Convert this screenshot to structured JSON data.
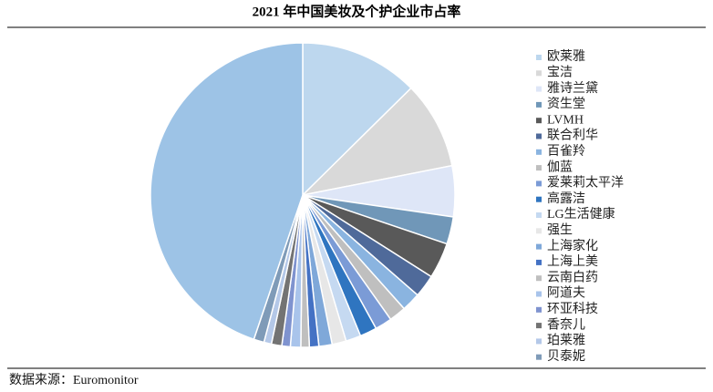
{
  "chart_data": {
    "type": "pie",
    "title": "2021 年中国美妆及个护企业市占率",
    "categories": [
      "欧莱雅",
      "宝洁",
      "雅诗兰黛",
      "资生堂",
      "LVMH",
      "联合利华",
      "百雀羚",
      "伽蓝",
      "爱莱莉太平洋",
      "高露洁",
      "LG生活健康",
      "强生",
      "上海家化",
      "上海上美",
      "云南白药",
      "阿道夫",
      "环亚科技",
      "香奈儿",
      "珀莱雅",
      "贝泰妮",
      null
    ],
    "values": [
      12.6,
      9.3,
      5.4,
      2.9,
      3.8,
      2.4,
      2.0,
      1.8,
      1.8,
      1.8,
      1.6,
      1.5,
      1.4,
      1.0,
      0.9,
      1.1,
      0.9,
      1.1,
      0.8,
      1.1,
      44.8
    ],
    "colors": [
      "#bdd7ee",
      "#d9d9d9",
      "#dee6f7",
      "#7097b8",
      "#595959",
      "#4f6a9a",
      "#8ab4e0",
      "#bfbfbf",
      "#7b9bd6",
      "#2f75c0",
      "#c5d9f1",
      "#e7e7e7",
      "#7fa8d9",
      "#4472c4",
      "#bfbfbf",
      "#a9c4eb",
      "#7f93cf",
      "#737373",
      "#b4c8e8",
      "#7f9bb8",
      "#9dc3e6"
    ],
    "source": "数据来源：Euromonitor"
  }
}
